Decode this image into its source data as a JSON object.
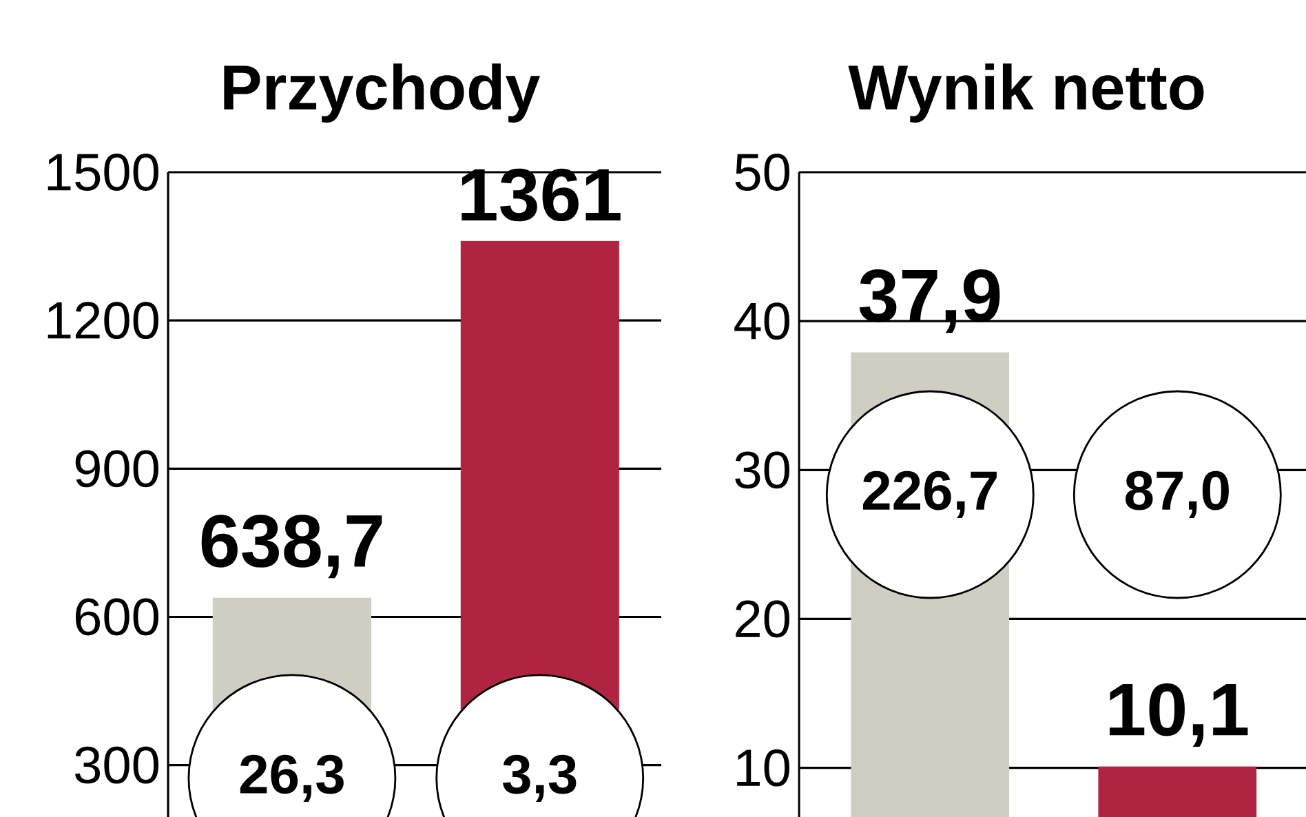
{
  "chart_data": [
    {
      "type": "bar",
      "title": "Przychody",
      "categories": [
        null,
        null
      ],
      "values": [
        638.7,
        1361
      ],
      "colors": [
        "#cfcec2",
        "#b12441"
      ],
      "value_labels": [
        "638,7",
        "1361"
      ],
      "ylim": [
        195,
        1500
      ],
      "yticks": [
        300,
        600,
        900,
        1200,
        1500
      ],
      "grid": "y",
      "annotations": [
        "26,3",
        "3,3"
      ]
    },
    {
      "type": "bar",
      "title": "Wynik netto",
      "categories": [
        null,
        null
      ],
      "values": [
        37.9,
        10.1
      ],
      "colors": [
        "#cfcec2",
        "#b12441"
      ],
      "value_labels": [
        "37,9",
        "10,1"
      ],
      "ylim": [
        6.7,
        50
      ],
      "yticks": [
        10,
        20,
        30,
        40,
        50
      ],
      "grid": "y",
      "annotations": [
        "226,7",
        "87,0"
      ]
    }
  ]
}
